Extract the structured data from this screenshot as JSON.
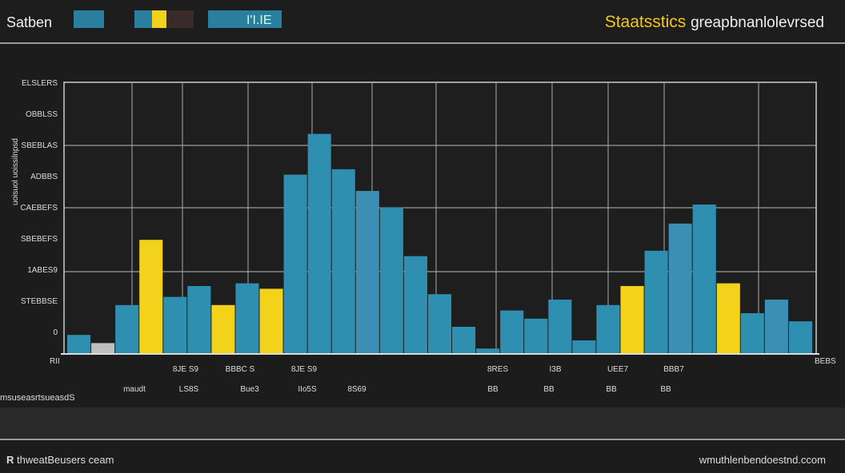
{
  "header": {
    "brand": "Satben",
    "tab_label": "I'I.IE",
    "title_accent": "Staatsstics",
    "title_rest": "greapbnanlolevrsed",
    "swatches": [
      "#2a7f9e",
      "#2a7f9e",
      "#f2d21a",
      "#3a2a2a",
      "#2a7f9e"
    ]
  },
  "chart_data": {
    "type": "bar",
    "title": "Staatsstics greapbnanlolevrsed",
    "ylabel": "uoisuol uoissilnpsd",
    "ylim": [
      0,
      100
    ],
    "yticks": [
      "0",
      "STEBBSE",
      "1ABES9",
      "SBEBEFS",
      "CAEBEFS",
      "ADBBS",
      "SBEBLAS",
      "OBBLSS",
      "ELSLERS"
    ],
    "x_axis_left_label": "RII",
    "x_axis_right_label": "BEBS",
    "grid": true,
    "values": [
      7,
      4,
      18,
      42,
      21,
      25,
      18,
      26,
      24,
      66,
      81,
      68,
      60,
      54,
      36,
      22,
      10,
      2,
      16,
      13,
      20,
      5,
      18,
      25,
      38,
      48,
      55,
      26,
      15,
      20,
      12
    ],
    "colors": [
      "#2f8fb0",
      "#bfbfbf",
      "#2f8fb0",
      "#f2d21a",
      "#2f8fb0",
      "#2f8fb0",
      "#f2d21a",
      "#2f8fb0",
      "#f2d21a",
      "#2f8fb0",
      "#2f8fb0",
      "#2f8fb0",
      "#3b8fb5",
      "#2f8fb0",
      "#2f8fb0",
      "#2f8fb0",
      "#2f8fb0",
      "#2f8fb0",
      "#2f8fb0",
      "#2f8fb0",
      "#2f8fb0",
      "#2f8fb0",
      "#2f8fb0",
      "#f2d21a",
      "#2f8fb0",
      "#3b8fb5",
      "#2f8fb0",
      "#f2d21a",
      "#2f8fb0",
      "#3b8fb5",
      "#2f8fb0"
    ],
    "category_labels_row1": [
      "8JE S9",
      "BBBC S",
      "8JE S9",
      "8RES",
      "I3B",
      "UEE7",
      "BBB7"
    ],
    "category_labels_row2": [
      "maudt",
      "LS8S",
      "Bue3",
      "IIo5S",
      "8S69",
      "BB",
      "BB",
      "BB",
      "BB"
    ]
  },
  "sidebar_note": "msuseasrtsueasdS",
  "footer": {
    "left_icon": "R",
    "left": "thweatBeusers ceam",
    "right": "wmuthlenbendoestnd.ccom"
  }
}
